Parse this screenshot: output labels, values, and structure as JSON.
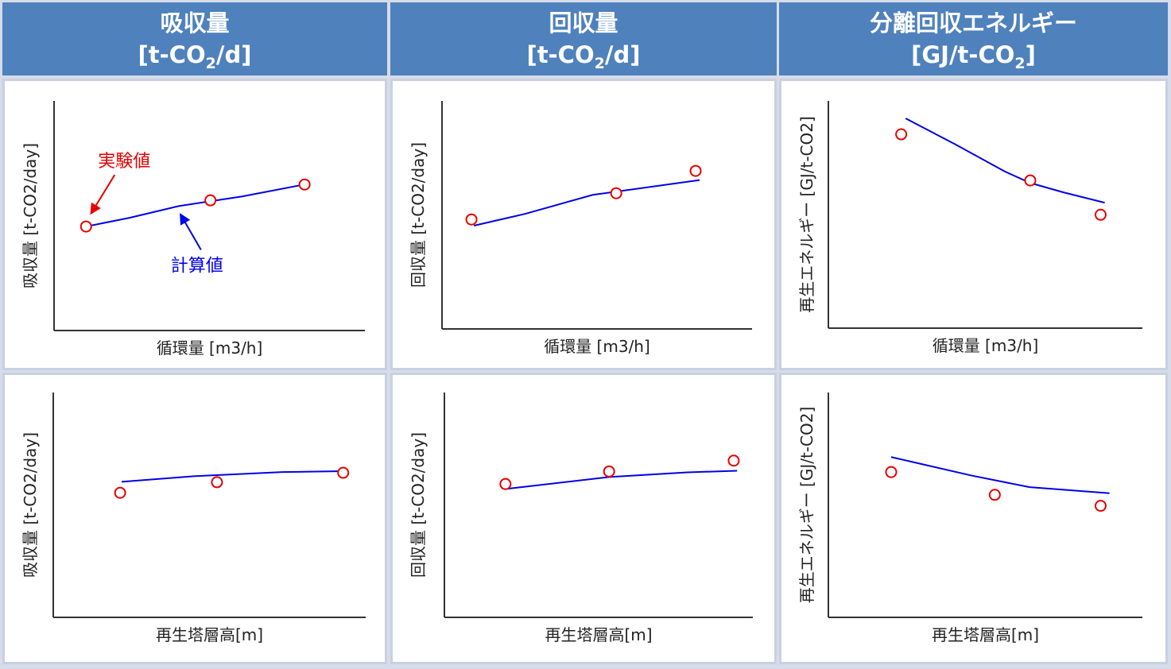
{
  "headers": [
    {
      "title": "吸収量",
      "unit_pre": "[t-CO",
      "unit_sub": "2",
      "unit_post": "/d]"
    },
    {
      "title": "回収量",
      "unit_pre": "[t-CO",
      "unit_sub": "2",
      "unit_post": "/d]"
    },
    {
      "title": "分離回収エネルギー",
      "unit_pre": "[GJ/t-CO",
      "unit_sub": "2",
      "unit_post": "]"
    }
  ],
  "colors": {
    "header_bg": "#4f81bd",
    "calc_line": "#0000e6",
    "exp_marker": "#e60000",
    "axis": "#333333"
  },
  "chart_data": [
    {
      "type": "line",
      "id": "absorption-vs-circulation",
      "xlabel": "循環量 [m3/h]",
      "ylabel": "吸収量 [t-CO2/day]",
      "xlim": [
        0,
        10
      ],
      "ylim": [
        0,
        10
      ],
      "series": [
        {
          "name": "計算値",
          "style": "line",
          "x": [
            1.03,
            2.43,
            4.01,
            6.05,
            8.06
          ],
          "values": [
            4.53,
            4.91,
            5.42,
            5.84,
            6.36
          ]
        },
        {
          "name": "実験値",
          "style": "marker",
          "x": [
            1.03,
            5.03,
            8.06
          ],
          "values": [
            4.53,
            5.67,
            6.36
          ]
        }
      ],
      "annotations": [
        {
          "text": "実験値",
          "color": "#e60000",
          "target_series": "実験値"
        },
        {
          "text": "計算値",
          "color": "#0000e6",
          "target_series": "計算値"
        }
      ]
    },
    {
      "type": "line",
      "id": "recovery-vs-circulation",
      "xlabel": "循環量 [m3/h]",
      "ylabel": "回収量 [t-CO2/day]",
      "xlim": [
        0,
        10
      ],
      "ylim": [
        0,
        10
      ],
      "series": [
        {
          "name": "計算値",
          "style": "line",
          "x": [
            1.03,
            2.69,
            4.86,
            8.31
          ],
          "values": [
            4.53,
            5.05,
            5.88,
            6.53
          ]
        },
        {
          "name": "実験値",
          "style": "marker",
          "x": [
            0.95,
            5.62,
            8.18
          ],
          "values": [
            4.8,
            5.95,
            6.93
          ]
        }
      ],
      "annotations": []
    },
    {
      "type": "line",
      "id": "energy-vs-circulation",
      "xlabel": "循環量 [m3/h]",
      "ylabel": "再生エネルギー [GJ/t-CO2]",
      "xlim": [
        0,
        10
      ],
      "ylim": [
        0,
        10
      ],
      "series": [
        {
          "name": "計算値",
          "style": "line",
          "x": [
            2.46,
            4.04,
            5.61,
            6.43,
            7.5,
            8.8
          ],
          "values": [
            9.23,
            8.09,
            6.9,
            6.39,
            5.97,
            5.52
          ]
        },
        {
          "name": "実験値",
          "style": "marker",
          "x": [
            2.32,
            6.43,
            8.67
          ],
          "values": [
            8.53,
            6.5,
            4.99
          ]
        }
      ],
      "annotations": []
    },
    {
      "type": "line",
      "id": "absorption-vs-height",
      "xlabel": "再生塔層高[m]",
      "ylabel": "吸収量 [t-CO2/day]",
      "xlim": [
        0,
        10
      ],
      "ylim": [
        0,
        10
      ],
      "series": [
        {
          "name": "計算値",
          "style": "line",
          "x": [
            2.19,
            4.54,
            7.33,
            9.28
          ],
          "values": [
            6.03,
            6.28,
            6.46,
            6.5
          ]
        },
        {
          "name": "実験値",
          "style": "marker",
          "x": [
            2.14,
            5.24,
            9.28
          ],
          "values": [
            5.54,
            6.01,
            6.43
          ]
        }
      ],
      "annotations": []
    },
    {
      "type": "line",
      "id": "recovery-vs-height",
      "xlabel": "再生塔層高[m]",
      "ylabel": "回収量 [t-CO2/day]",
      "xlim": [
        0,
        10
      ],
      "ylim": [
        0,
        10
      ],
      "series": [
        {
          "name": "計算値",
          "style": "line",
          "x": [
            2.05,
            5.34,
            7.88,
            9.49
          ],
          "values": [
            5.72,
            6.24,
            6.45,
            6.52
          ]
        },
        {
          "name": "実験値",
          "style": "marker",
          "x": [
            1.98,
            5.34,
            9.38
          ],
          "values": [
            5.93,
            6.49,
            6.97
          ]
        }
      ],
      "annotations": []
    },
    {
      "type": "line",
      "id": "energy-vs-height",
      "xlabel": "再生塔層高[m]",
      "ylabel": "再生エネルギー [GJ/t-CO2]",
      "xlim": [
        0,
        10
      ],
      "ylim": [
        0,
        10
      ],
      "series": [
        {
          "name": "計算値",
          "style": "line",
          "x": [
            2.0,
            4.55,
            6.41,
            8.95
          ],
          "values": [
            7.13,
            6.31,
            5.79,
            5.52
          ]
        },
        {
          "name": "実験値",
          "style": "marker",
          "x": [
            2.0,
            5.3,
            8.67
          ],
          "values": [
            6.46,
            5.45,
            4.96
          ]
        }
      ],
      "annotations": []
    }
  ]
}
